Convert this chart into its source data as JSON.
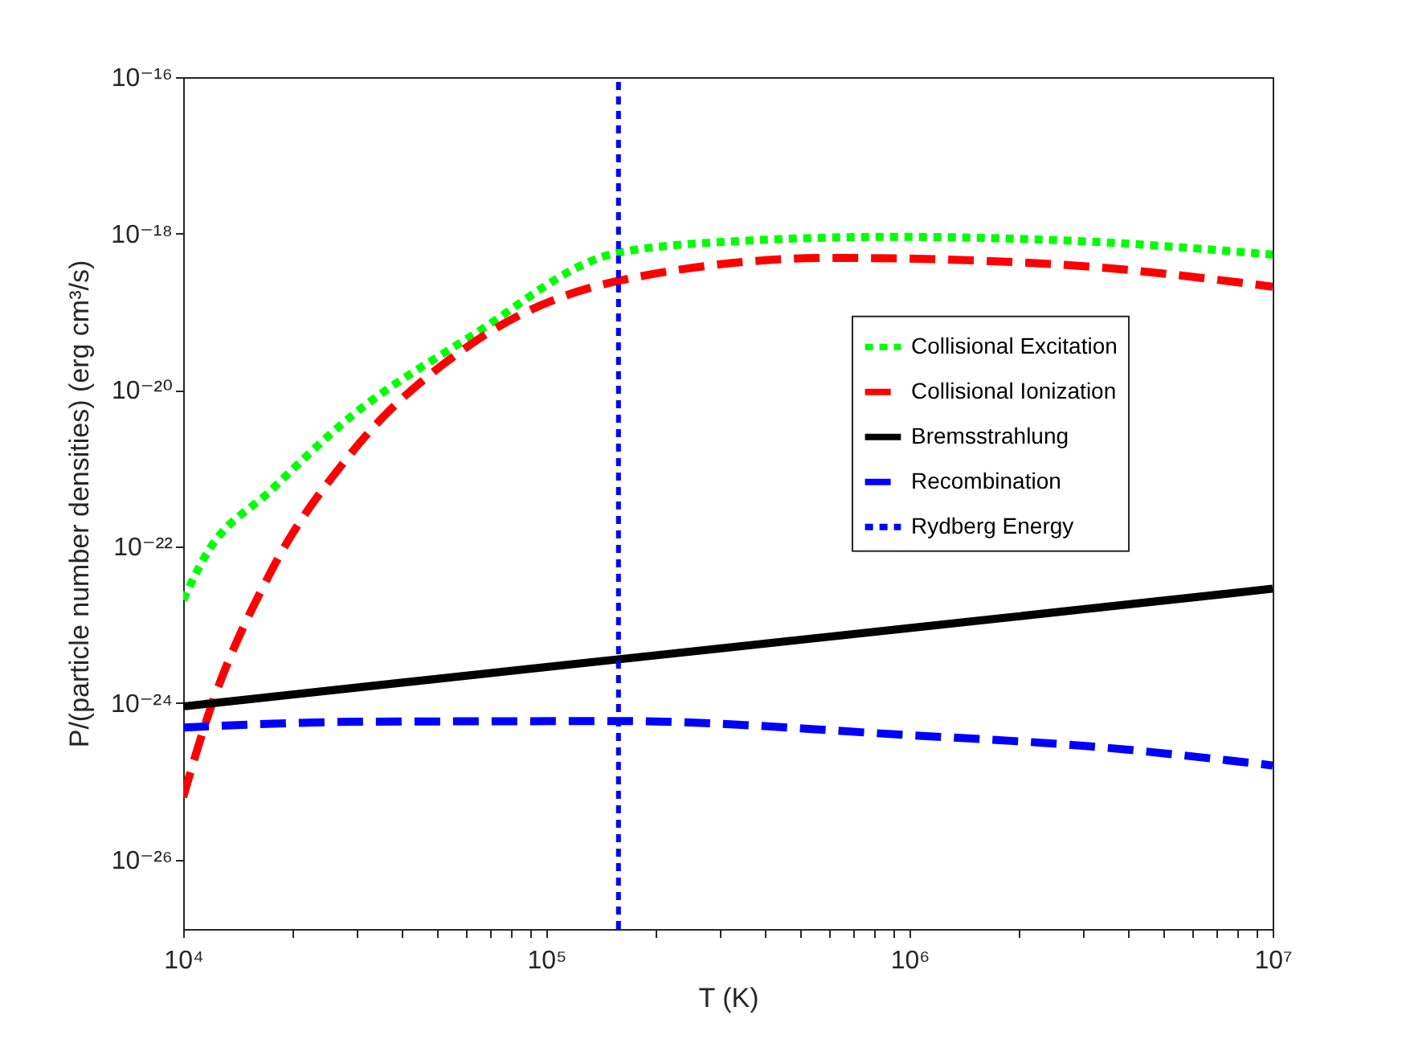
{
  "chart_data": {
    "type": "line",
    "xlabel": "T (K)",
    "ylabel": "P/(particle number densities) (erg cm³/s)",
    "log": "xy",
    "grid": false,
    "legend": "right",
    "xlim": [
      10000.0,
      10000000.0
    ],
    "ylim": [
      1.3e-27,
      1e-16
    ],
    "xticks": [
      {
        "value": 10000.0,
        "label": "10⁴"
      },
      {
        "value": 20000.0,
        "label": null
      },
      {
        "value": 30000.0,
        "label": null
      },
      {
        "value": 40000.0,
        "label": null
      },
      {
        "value": 50000.0,
        "label": null
      },
      {
        "value": 60000.0,
        "label": null
      },
      {
        "value": 70000.0,
        "label": null
      },
      {
        "value": 80000.0,
        "label": null
      },
      {
        "value": 90000.0,
        "label": null
      },
      {
        "value": 100000.0,
        "label": "10⁵"
      },
      {
        "value": 200000.0,
        "label": null
      },
      {
        "value": 300000.0,
        "label": null
      },
      {
        "value": 400000.0,
        "label": null
      },
      {
        "value": 500000.0,
        "label": null
      },
      {
        "value": 600000.0,
        "label": null
      },
      {
        "value": 700000.0,
        "label": null
      },
      {
        "value": 800000.0,
        "label": null
      },
      {
        "value": 900000.0,
        "label": null
      },
      {
        "value": 1000000.0,
        "label": "10⁶"
      },
      {
        "value": 2000000.0,
        "label": null
      },
      {
        "value": 3000000.0,
        "label": null
      },
      {
        "value": 4000000.0,
        "label": null
      },
      {
        "value": 5000000.0,
        "label": null
      },
      {
        "value": 6000000.0,
        "label": null
      },
      {
        "value": 7000000.0,
        "label": null
      },
      {
        "value": 8000000.0,
        "label": null
      },
      {
        "value": 9000000.0,
        "label": null
      },
      {
        "value": 10000000.0,
        "label": "10⁷"
      }
    ],
    "yticks": [
      {
        "value": 1e-26,
        "label": "10⁻²⁶"
      },
      {
        "value": 1e-24,
        "label": "10⁻²⁴"
      },
      {
        "value": 1e-22,
        "label": "10⁻²²"
      },
      {
        "value": 1e-20,
        "label": "10⁻²⁰"
      },
      {
        "value": 1e-18,
        "label": "10⁻¹⁸"
      },
      {
        "value": 1e-16,
        "label": "10⁻¹⁶"
      }
    ],
    "series": [
      {
        "name": "Collisional Excitation",
        "color": "#00ff00",
        "line_style": "dotted",
        "x": [
          10000.0,
          11500.0,
          17400.0,
          28800.0,
          61700.0,
          155000.0,
          316000.0,
          890000.0,
          3160000.0,
          10000000.0
        ],
        "values": [
          2.1e-23,
          7.6e-23,
          5.2e-22,
          4.5e-21,
          4.8e-20,
          5.6e-19,
          7.9e-19,
          9.1e-19,
          7.9e-19,
          5.4e-19
        ]
      },
      {
        "name": "Collisional Ionization",
        "color": "#ff0000",
        "line_style": "dashed",
        "x": [
          10000.0,
          11500.0,
          17400.0,
          28800.0,
          61700.0,
          158000.0,
          617000.0,
          2450000.0,
          10000000.0
        ],
        "values": [
          6.3e-26,
          5.4e-25,
          4.7e-23,
          1.5e-21,
          3.8e-20,
          2.5e-19,
          4.9e-19,
          4.1e-19,
          2.1e-19
        ]
      },
      {
        "name": "Bremsstrahlung",
        "color": "#000000",
        "line_style": "solid",
        "x": [
          10000.0,
          100000.0,
          1000000.0,
          10000000.0
        ],
        "values": [
          9.1e-25,
          2.9e-24,
          9.1e-24,
          2.9e-23
        ]
      },
      {
        "name": "Recombination",
        "color": "#0000ff",
        "line_style": "dashed",
        "x": [
          10000.0,
          31600.0,
          158000.0,
          1000000.0,
          3160000.0,
          10000000.0
        ],
        "values": [
          4.9e-25,
          5.8e-25,
          5.9e-25,
          3.9e-25,
          2.8e-25,
          1.6e-25
        ]
      },
      {
        "name": "Rydberg Energy",
        "color": "#0000ff",
        "line_style": "dotted",
        "x": [
          158000.0,
          158000.0
        ],
        "values": [
          1.3e-27,
          1e-16
        ]
      }
    ]
  }
}
